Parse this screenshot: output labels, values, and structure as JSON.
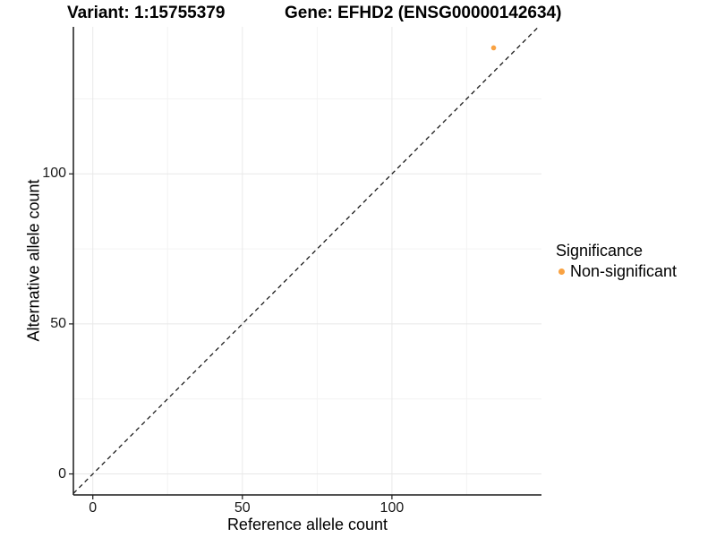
{
  "chart_data": {
    "type": "scatter",
    "title_variant": "Variant: 1:15755379",
    "title_gene": "Gene: EFHD2 (ENSG00000142634)",
    "xlabel": "Reference allele count",
    "ylabel": "Alternative allele count",
    "xlim": [
      -6.5,
      150
    ],
    "ylim": [
      -7,
      149
    ],
    "xticks": [
      0,
      50,
      100
    ],
    "yticks": [
      0,
      50,
      100
    ],
    "xticks_minor": [
      25,
      75,
      125
    ],
    "yticks_minor": [
      25,
      75,
      125
    ],
    "grid": {
      "show": true,
      "major_color": "#e8e8e8",
      "minor_color": "#f3f3f3"
    },
    "reference_line": {
      "type": "identity",
      "slope": 1,
      "intercept": 0,
      "style": "dashed",
      "color": "#1a1a1a"
    },
    "series": [
      {
        "name": "Non-significant",
        "color": "#f9a242",
        "points": [
          {
            "x": 134,
            "y": 142
          }
        ]
      }
    ],
    "legend": {
      "title": "Significance",
      "position": "right",
      "entries": [
        {
          "label": "Non-significant",
          "color": "#f9a242"
        }
      ]
    },
    "colors": {
      "axis": "#1a1a1a",
      "tick_text": "#1a1a1a",
      "background": "#ffffff"
    }
  }
}
